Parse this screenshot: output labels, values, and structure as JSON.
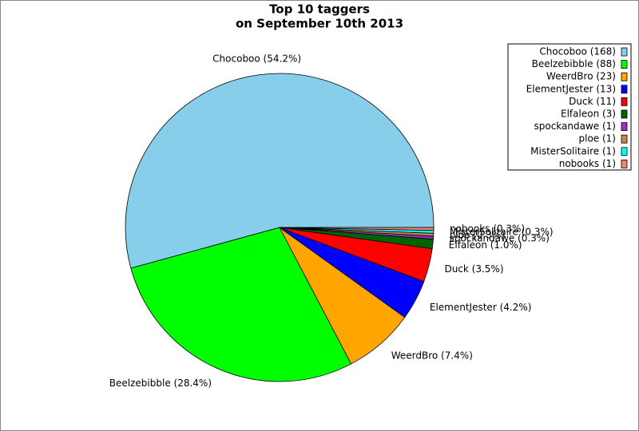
{
  "chart_data": {
    "type": "pie",
    "title": "Top 10 taggers",
    "subtitle": "on September 10th 2013",
    "categories": [
      "Chocoboo",
      "Beelzebibble",
      "WeerdBro",
      "ElementJester",
      "Duck",
      "Elfaleon",
      "spockandawe",
      "ploe",
      "MisterSolitaire",
      "nobooks"
    ],
    "values": [
      54.2,
      28.4,
      7.4,
      4.2,
      3.5,
      1.0,
      0.3,
      0.3,
      0.3,
      0.3
    ],
    "value_labels": [
      "Chocoboo (54.2%)",
      "Beelzebibble (28.4%)",
      "WeerdBro (7.4%)",
      "ElementJester (4.2%)",
      "Duck (3.5%)",
      "Elfaleon (1.0%)",
      "spockandawe (0.3%)",
      "ploe (0.3%)",
      "MisterSolitaire (0.3%)",
      "nobooks (0.3%)"
    ],
    "legend_labels": [
      "Chocoboo (168)",
      "Beelzebibble (88)",
      "WeerdBro (23)",
      "ElementJester (13)",
      "Duck (11)",
      "Elfaleon (3)",
      "spockandawe (1)",
      "ploe (1)",
      "MisterSolitaire (1)",
      "nobooks (1)"
    ],
    "colors": [
      "#87ceeb",
      "#00ff00",
      "#ffa500",
      "#0000ff",
      "#ff0000",
      "#006400",
      "#9932cc",
      "#cd853f",
      "#00ffff",
      "#fa8072"
    ],
    "legend_position": "upper right"
  }
}
